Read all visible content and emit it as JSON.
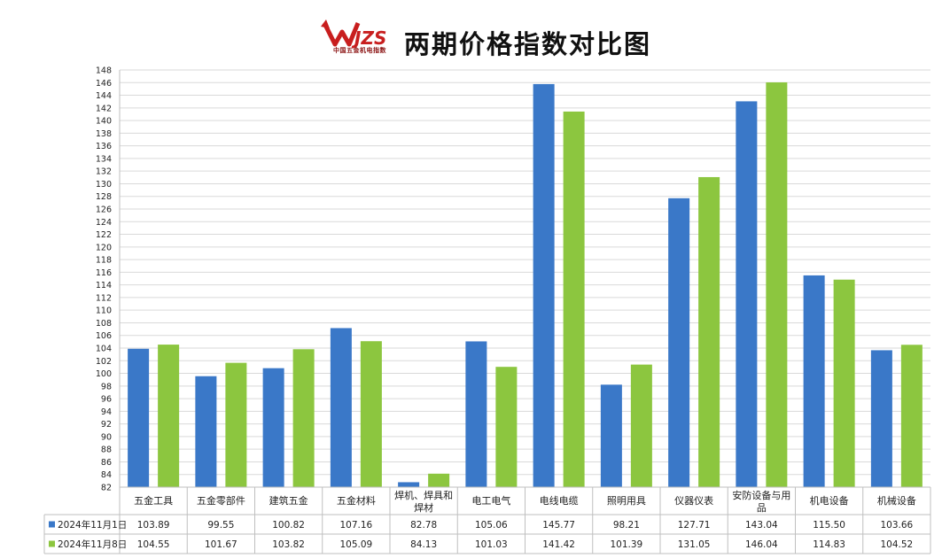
{
  "title": "两期价格指数对比图",
  "logo": {
    "text": "中国五金机电指数"
  },
  "chart_data": {
    "type": "bar",
    "title": "两期价格指数对比图",
    "categories": [
      "五金工具",
      "五金零部件",
      "建筑五金",
      "五金材料",
      "焊机、焊具和焊材",
      "电工电气",
      "电线电缆",
      "照明用具",
      "仪器仪表",
      "安防设备与用品",
      "机电设备",
      "机械设备"
    ],
    "series": [
      {
        "name": "2024年11月1日",
        "color": "#3a78c8",
        "values": [
          103.89,
          99.55,
          100.82,
          107.16,
          82.78,
          105.06,
          145.77,
          98.21,
          127.71,
          143.04,
          115.5,
          103.66
        ]
      },
      {
        "name": "2024年11月8日",
        "color": "#8cc63f",
        "values": [
          104.55,
          101.67,
          103.82,
          105.09,
          84.13,
          101.03,
          141.42,
          101.39,
          131.05,
          146.04,
          114.83,
          104.52
        ]
      }
    ],
    "value_labels": [
      [
        "103.89",
        "99.55",
        "100.82",
        "107.16",
        "82.78",
        "105.06",
        "145.77",
        "98.21",
        "127.71",
        "143.04",
        "115.50",
        "103.66"
      ],
      [
        "104.55",
        "101.67",
        "103.82",
        "105.09",
        "84.13",
        "101.03",
        "141.42",
        "101.39",
        "131.05",
        "146.04",
        "114.83",
        "104.52"
      ]
    ],
    "ylim": [
      82,
      148
    ],
    "ytick_step": 2,
    "grid": true,
    "legend": "data-table"
  }
}
